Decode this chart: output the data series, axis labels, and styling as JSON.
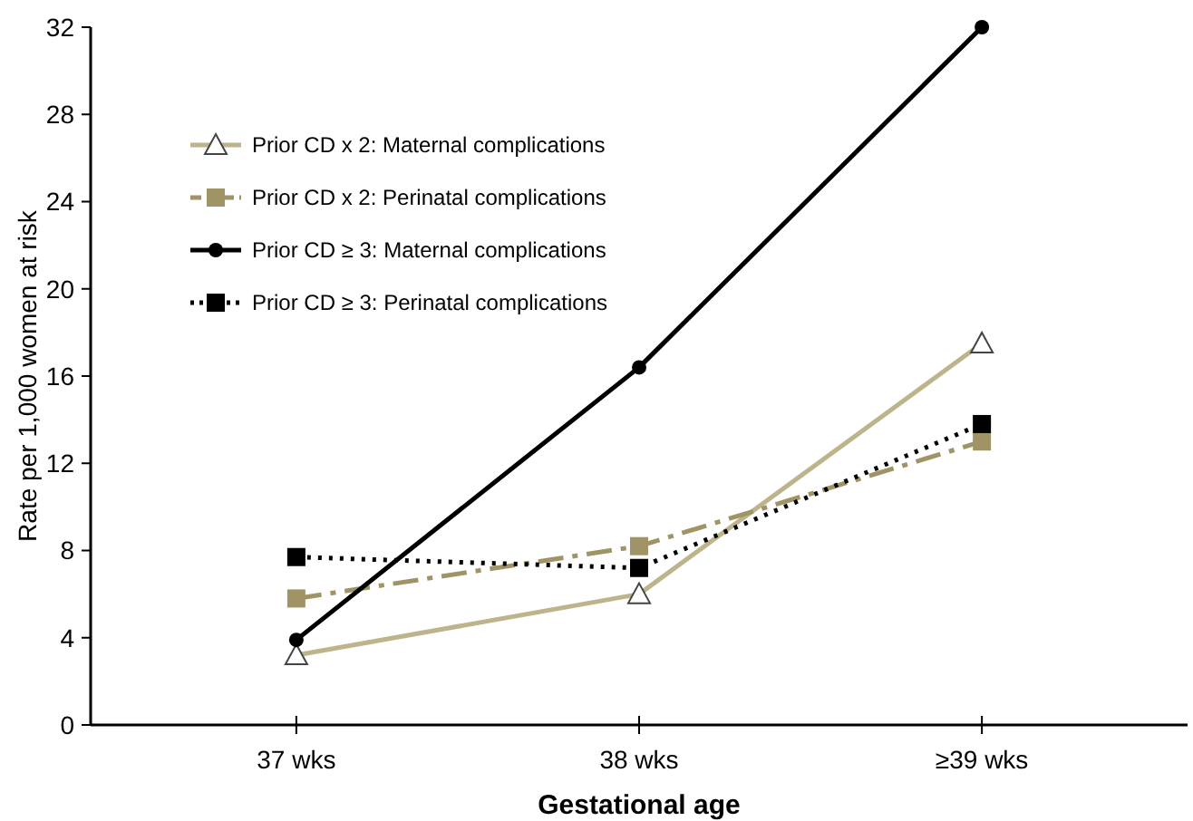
{
  "chart_data": {
    "type": "line",
    "xlabel": "Gestational age",
    "ylabel": "Rate per 1,000 women at risk",
    "categories": [
      "37 wks",
      "38 wks",
      "≥39 wks"
    ],
    "ylim": [
      0,
      32
    ],
    "yticks": [
      0,
      4,
      8,
      12,
      16,
      20,
      24,
      28,
      32
    ],
    "grid": false,
    "legend": "top left",
    "series": [
      {
        "name": "Prior CD x 2: Maternal complications",
        "color": "#bdb48c",
        "marker": "triangle",
        "line_style": "solid",
        "values": [
          3.2,
          6.0,
          17.5
        ]
      },
      {
        "name": "Prior CD x 2: Perinatal complications",
        "color": "#a09466",
        "marker": "square",
        "line_style": "dashed",
        "values": [
          5.8,
          8.2,
          13.0
        ]
      },
      {
        "name": "Prior CD ≥ 3: Maternal complications",
        "color": "#000000",
        "marker": "circle",
        "line_style": "solid",
        "values": [
          3.9,
          16.4,
          32.0
        ]
      },
      {
        "name": "Prior CD ≥ 3: Perinatal complications",
        "color": "#000000",
        "marker": "square",
        "line_style": "dotted",
        "values": [
          7.7,
          7.2,
          13.8
        ]
      }
    ]
  }
}
